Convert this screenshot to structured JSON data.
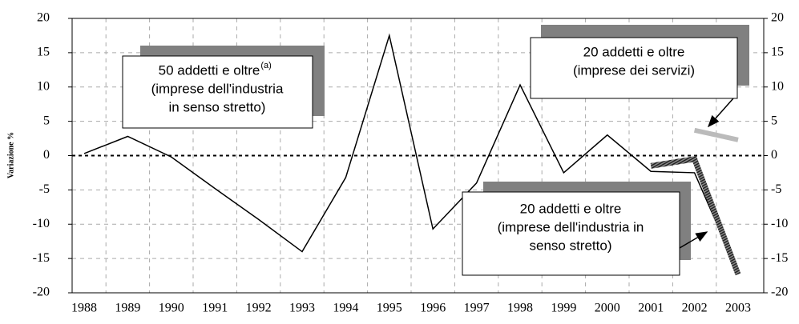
{
  "chart_data": {
    "type": "line",
    "y_label": "Variazione %",
    "categories": [
      "1988",
      "1989",
      "1990",
      "1991",
      "1992",
      "1993",
      "1994",
      "1995",
      "1996",
      "1997",
      "1998",
      "1999",
      "2000",
      "2001",
      "2002",
      "2003"
    ],
    "series": [
      {
        "color": "#000000",
        "values": [
          0.3,
          2.8,
          -0.2,
          -4.8,
          -9.3,
          -14.0,
          -3.2,
          17.5,
          -10.7,
          -4.0,
          10.3,
          -2.5,
          3.0,
          -2.3,
          -2.5,
          -17.0
        ]
      },
      {
        "color": "#555555",
        "values": [
          null,
          null,
          null,
          null,
          null,
          null,
          null,
          null,
          null,
          null,
          null,
          null,
          null,
          -1.5,
          -0.5,
          -17.3
        ]
      },
      {
        "color": "#bbbbbb",
        "values": [
          null,
          null,
          null,
          null,
          null,
          null,
          null,
          null,
          null,
          null,
          null,
          null,
          null,
          null,
          3.7,
          2.3
        ]
      }
    ],
    "ylim": [
      -20,
      20
    ],
    "yticks": [
      -20,
      -15,
      -10,
      -5,
      0,
      5,
      10,
      15,
      20
    ],
    "y2lim": [
      -20,
      20
    ],
    "y2ticks": [
      -20,
      -15,
      -10,
      -5,
      0,
      5,
      10,
      15,
      20
    ],
    "grid": true,
    "annotations": [
      {
        "lines": [
          "50 addetti e oltre",
          "(imprese dell'industria",
          "in senso stretto)"
        ],
        "sup": "(a)"
      },
      {
        "lines": [
          "20 addetti e oltre",
          "(imprese dei servizi)"
        ]
      },
      {
        "lines": [
          "20 addetti e oltre",
          "(imprese dell'industria in",
          "senso stretto)"
        ]
      }
    ]
  }
}
